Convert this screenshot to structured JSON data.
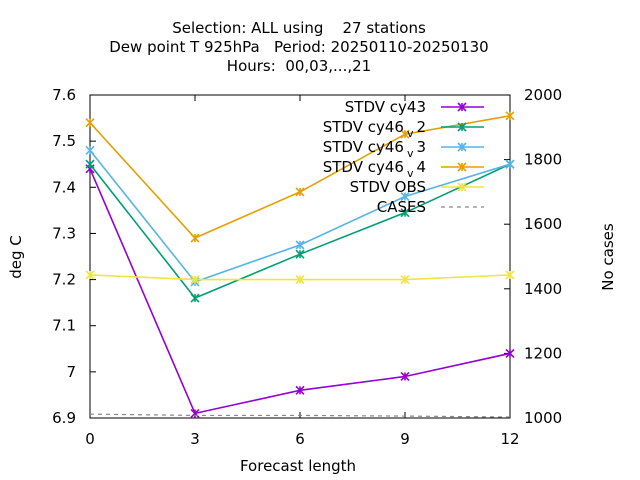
{
  "chart_data": {
    "type": "line",
    "title_lines": [
      "Selection: ALL using    27 stations",
      "Dew point T 925hPa   Period: 20250110-20250130",
      "Hours:  00,03,...,21"
    ],
    "xlabel": "Forecast length",
    "ylabel": "deg C",
    "y2label": "No cases",
    "x": [
      0,
      3,
      6,
      9,
      12
    ],
    "xlim": [
      0,
      12
    ],
    "ylim": [
      6.9,
      7.6
    ],
    "y2lim": [
      1000,
      2000
    ],
    "x_ticks": [
      "0",
      "3",
      "6",
      "9",
      "12"
    ],
    "y_ticks": [
      "6.9",
      "7",
      "7.1",
      "7.2",
      "7.3",
      "7.4",
      "7.5",
      "7.6"
    ],
    "y2_ticks": [
      "1000",
      "1200",
      "1400",
      "1600",
      "1800",
      "2000"
    ],
    "grid": false,
    "legend_position": "top-right",
    "series": [
      {
        "name": "STDV cy43",
        "label_parts": [
          "STDV cy43"
        ],
        "color": "#9400d3",
        "marker": "x",
        "axis": "y",
        "values": [
          7.44,
          6.91,
          6.96,
          6.99,
          7.04
        ]
      },
      {
        "name": "STDV cy46_v2",
        "label_parts": [
          "STDV cy46",
          "v",
          "2"
        ],
        "color": "#009e73",
        "marker": "x",
        "axis": "y",
        "values": [
          7.45,
          7.16,
          7.255,
          7.345,
          7.45
        ]
      },
      {
        "name": "STDV cy46_v3",
        "label_parts": [
          "STDV cy46",
          "v",
          "3"
        ],
        "color": "#56b4e9",
        "marker": "x",
        "axis": "y",
        "values": [
          7.48,
          7.195,
          7.275,
          7.38,
          7.45
        ]
      },
      {
        "name": "STDV cy46_v4",
        "label_parts": [
          "STDV cy46",
          "v",
          "4"
        ],
        "color": "#e69f00",
        "marker": "x",
        "axis": "y",
        "values": [
          7.54,
          7.29,
          7.39,
          7.515,
          7.555
        ]
      },
      {
        "name": "STDV OBS",
        "label_parts": [
          "STDV OBS"
        ],
        "color": "#f0e442",
        "marker": "x",
        "axis": "y",
        "values": [
          7.21,
          7.2,
          7.2,
          7.2,
          7.21
        ]
      },
      {
        "name": "CASES",
        "label_parts": [
          "CASES"
        ],
        "color": "#888888",
        "marker": "none",
        "dash": true,
        "axis": "y2",
        "values": [
          1012,
          1008,
          1008,
          1006,
          1003
        ]
      }
    ]
  }
}
